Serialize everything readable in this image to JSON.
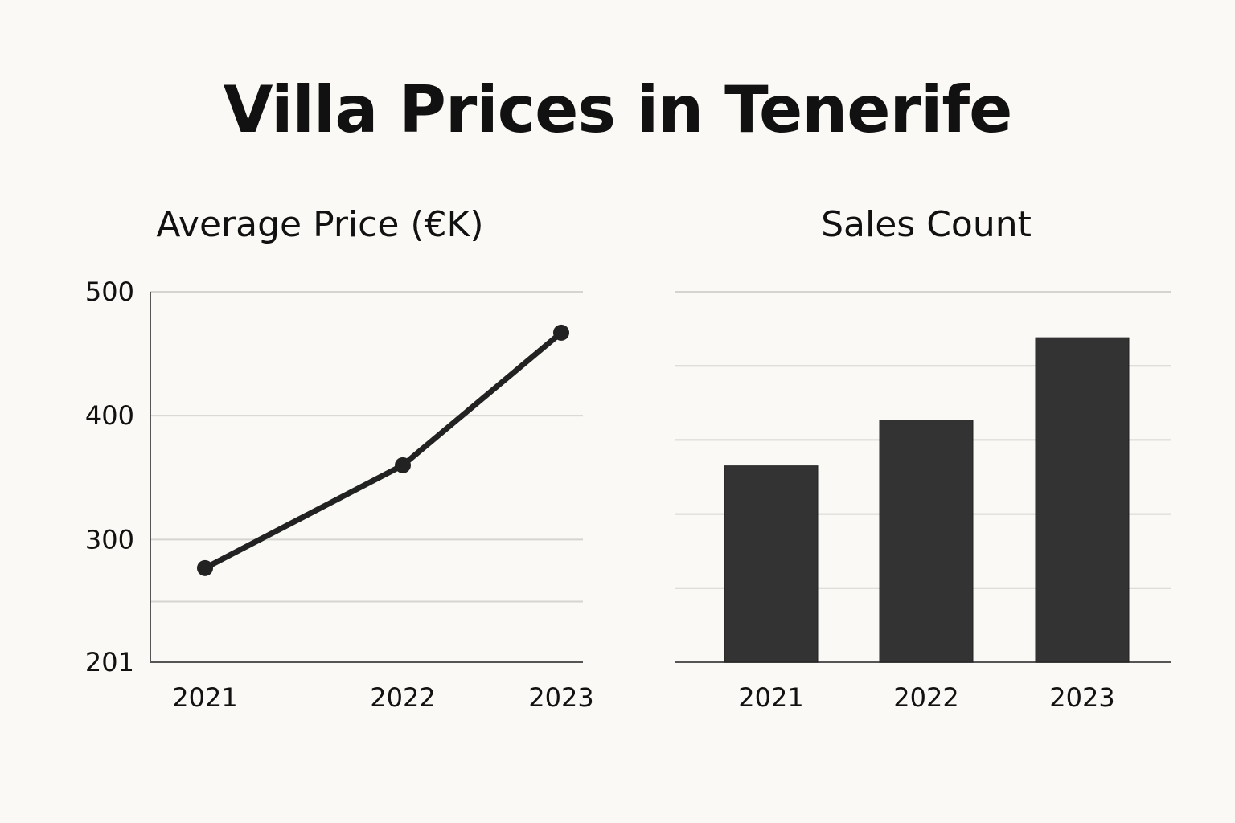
{
  "title": "Villa Prices in Tenerife",
  "colors": {
    "background": "#fbf9f5",
    "ink": "#222222",
    "bar": "#333333",
    "grid": "#d6d4d0"
  },
  "chart_data": [
    {
      "type": "line",
      "title": "Average Price (€K)",
      "categories": [
        "2021",
        "2022",
        "2023"
      ],
      "values": [
        277,
        360,
        467
      ],
      "ylim": [
        201,
        500
      ],
      "y_ticks": [
        "500",
        "400",
        "300",
        "201"
      ],
      "grid": true
    },
    {
      "type": "bar",
      "title": "Sales Count",
      "categories": [
        "2021",
        "2022",
        "2023"
      ],
      "values": [
        265,
        327,
        438
      ],
      "ylim": [
        0,
        500
      ],
      "y_ticks": [],
      "grid": true
    }
  ]
}
